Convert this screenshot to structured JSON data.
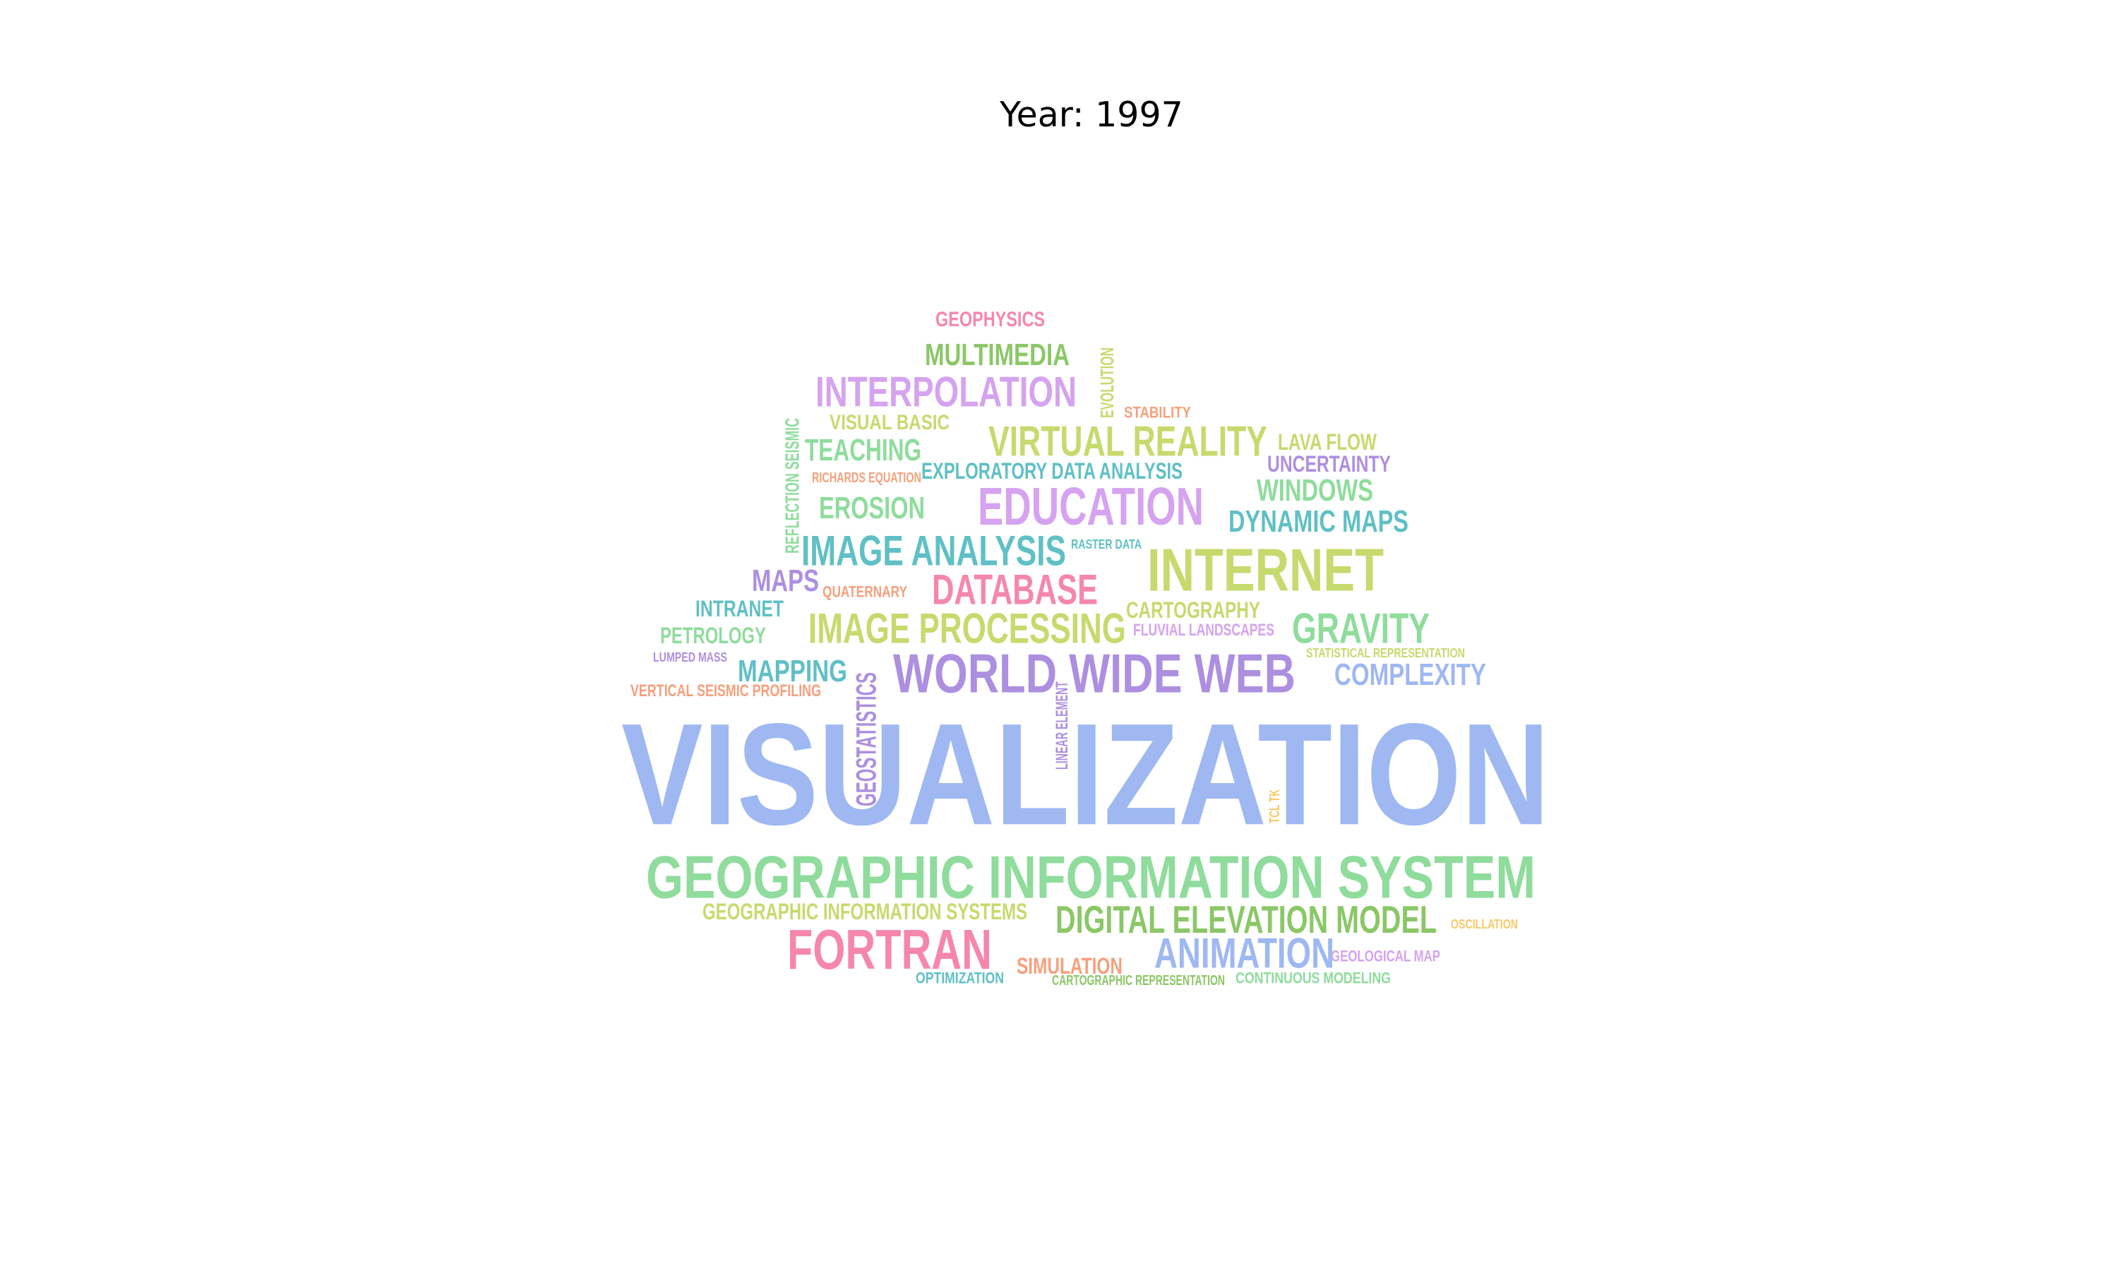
{
  "title": "Year: 1997",
  "word_cloud": {
    "words": [
      {
        "text": "VISUALIZATION",
        "color": "#9fb8f2"
      },
      {
        "text": "GEOGRAPHIC INFORMATION SYSTEM",
        "color": "#8fdc9c"
      },
      {
        "text": "WORLD WIDE WEB",
        "color": "#ad8fe0"
      },
      {
        "text": "INTERNET",
        "color": "#c6da6e"
      },
      {
        "text": "FORTRAN",
        "color": "#f587ab"
      },
      {
        "text": "EDUCATION",
        "color": "#d5a3ef"
      },
      {
        "text": "IMAGE PROCESSING",
        "color": "#c6da6e"
      },
      {
        "text": "DIGITAL ELEVATION MODEL",
        "color": "#8bc767"
      },
      {
        "text": "IMAGE ANALYSIS",
        "color": "#5fc0c5"
      },
      {
        "text": "VIRTUAL REALITY",
        "color": "#c6da6e"
      },
      {
        "text": "INTERPOLATION",
        "color": "#d5a3ef"
      },
      {
        "text": "ANIMATION",
        "color": "#9fb8f2"
      },
      {
        "text": "DATABASE",
        "color": "#f587ab"
      },
      {
        "text": "GRAVITY",
        "color": "#8fdc9c"
      },
      {
        "text": "MULTIMEDIA",
        "color": "#8bc767"
      },
      {
        "text": "COMPLEXITY",
        "color": "#9fb8f2"
      },
      {
        "text": "DYNAMIC MAPS",
        "color": "#5fc0c5"
      },
      {
        "text": "WINDOWS",
        "color": "#8fdc9c"
      },
      {
        "text": "TEACHING",
        "color": "#8fdc9c"
      },
      {
        "text": "EROSION",
        "color": "#8fdc9c"
      },
      {
        "text": "MAPPING",
        "color": "#5fc0c5"
      },
      {
        "text": "MAPS",
        "color": "#ad8fe0"
      },
      {
        "text": "GEOPHYSICS",
        "color": "#f587ab"
      },
      {
        "text": "EXPLORATORY DATA ANALYSIS",
        "color": "#5fc0c5"
      },
      {
        "text": "CARTOGRAPHY",
        "color": "#c6da6e"
      },
      {
        "text": "GEOGRAPHIC INFORMATION SYSTEMS",
        "color": "#c6da6e"
      },
      {
        "text": "UNCERTAINTY",
        "color": "#ad8fe0"
      },
      {
        "text": "LAVA FLOW",
        "color": "#c6da6e"
      },
      {
        "text": "INTRANET",
        "color": "#5fc0c5"
      },
      {
        "text": "PETROLOGY",
        "color": "#8fdc9c"
      },
      {
        "text": "SIMULATION",
        "color": "#f5a07c"
      },
      {
        "text": "VISUAL BASIC",
        "color": "#c6da6e"
      },
      {
        "text": "GEOSTATISTICS",
        "color": "#ad8fe0"
      },
      {
        "text": "FLUVIAL LANDSCAPES",
        "color": "#d5a3ef"
      },
      {
        "text": "QUATERNARY",
        "color": "#f5a07c"
      },
      {
        "text": "VERTICAL SEISMIC PROFILING",
        "color": "#f5a07c"
      },
      {
        "text": "GEOLOGICAL MAP",
        "color": "#d5a3ef"
      },
      {
        "text": "CONTINUOUS MODELING",
        "color": "#8fdc9c"
      },
      {
        "text": "OPTIMIZATION",
        "color": "#5fc0c5"
      },
      {
        "text": "CARTOGRAPHIC REPRESENTATION",
        "color": "#8bc767"
      },
      {
        "text": "REFLECTION SEISMIC",
        "color": "#8fdc9c"
      },
      {
        "text": "EVOLUTION",
        "color": "#c6da6e"
      },
      {
        "text": "STABILITY",
        "color": "#f5a07c"
      },
      {
        "text": "RICHARDS EQUATION",
        "color": "#f5a07c"
      },
      {
        "text": "RASTER DATA",
        "color": "#5fc0c5"
      },
      {
        "text": "LUMPED MASS",
        "color": "#ad8fe0"
      },
      {
        "text": "STATISTICAL REPRESENTATION",
        "color": "#c6da6e"
      },
      {
        "text": "LINEAR ELEMENT",
        "color": "#ad8fe0"
      },
      {
        "text": "TCL TK",
        "color": "#f6c96b"
      },
      {
        "text": "OSCILLATION",
        "color": "#f6c96b"
      }
    ]
  }
}
